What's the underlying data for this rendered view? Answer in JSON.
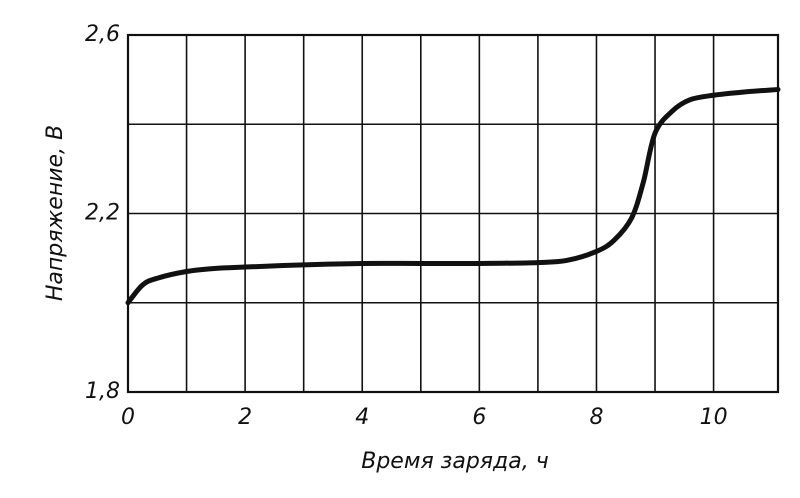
{
  "chart_data": {
    "type": "line",
    "x_label": "Время заряда, ч",
    "y_label": "Напряжение, В",
    "x": [
      0,
      0.25,
      0.5,
      1,
      1.5,
      2,
      3,
      4,
      5,
      6,
      7,
      7.5,
      8,
      8.3,
      8.6,
      8.8,
      9,
      9.3,
      9.6,
      10,
      10.5,
      11.1
    ],
    "series": [
      {
        "color": "#111111",
        "values": [
          2.0,
          2.04,
          2.055,
          2.07,
          2.077,
          2.08,
          2.085,
          2.088,
          2.088,
          2.088,
          2.09,
          2.095,
          2.115,
          2.14,
          2.19,
          2.27,
          2.38,
          2.43,
          2.455,
          2.465,
          2.472,
          2.478
        ]
      }
    ],
    "xlim": [
      0,
      11.1
    ],
    "ylim": [
      1.8,
      2.6
    ],
    "xticks": [
      0,
      2,
      4,
      6,
      8,
      10
    ],
    "minor_xticks": [
      1,
      3,
      5,
      7,
      9
    ],
    "yticks": [
      {
        "value": 1.8,
        "label": "1,8"
      },
      {
        "value": 2.2,
        "label": "2,2"
      },
      {
        "value": 2.6,
        "label": "2,6"
      }
    ],
    "minor_yticks": [
      2.0,
      2.4
    ],
    "grid": true
  }
}
